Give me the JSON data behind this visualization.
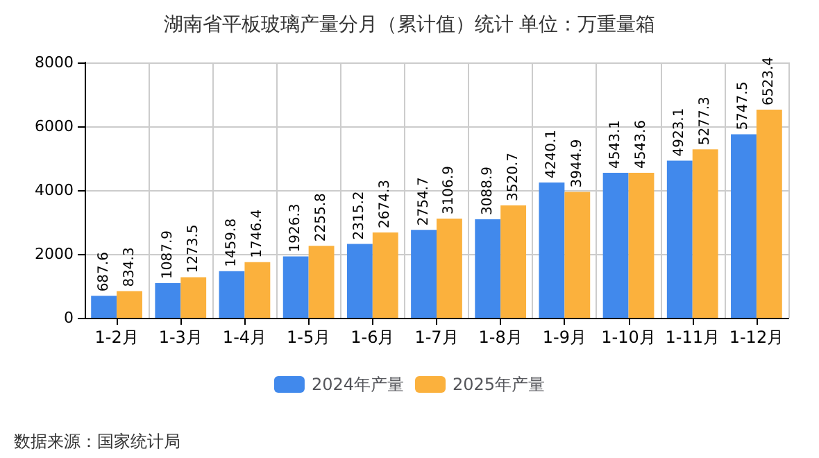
{
  "chart_data": {
    "type": "bar",
    "title": "湖南省平板玻璃产量分月（累计值）统计 单位：万重量箱",
    "categories": [
      "1-2月",
      "1-3月",
      "1-4月",
      "1-5月",
      "1-6月",
      "1-7月",
      "1-8月",
      "1-9月",
      "1-10月",
      "1-11月",
      "1-12月"
    ],
    "series": [
      {
        "name": "2024年产量",
        "color": "#4189ec",
        "values": [
          687.6,
          1087.9,
          1459.8,
          1926.3,
          2315.2,
          2754.7,
          3088.9,
          4240.1,
          4543.1,
          4923.1,
          5747.5
        ]
      },
      {
        "name": "2025年产量",
        "color": "#fbb13d",
        "values": [
          834.3,
          1273.5,
          1746.4,
          2255.8,
          2674.3,
          3106.9,
          3520.7,
          3944.9,
          4543.6,
          5277.3,
          6523.4
        ]
      }
    ],
    "ylim": [
      0,
      8000
    ],
    "yticks": [
      0,
      2000,
      4000,
      6000,
      8000
    ],
    "grid": true,
    "legend": "bottom",
    "data_labels": true,
    "annotations": [
      "数据来源：国家统计局"
    ]
  }
}
